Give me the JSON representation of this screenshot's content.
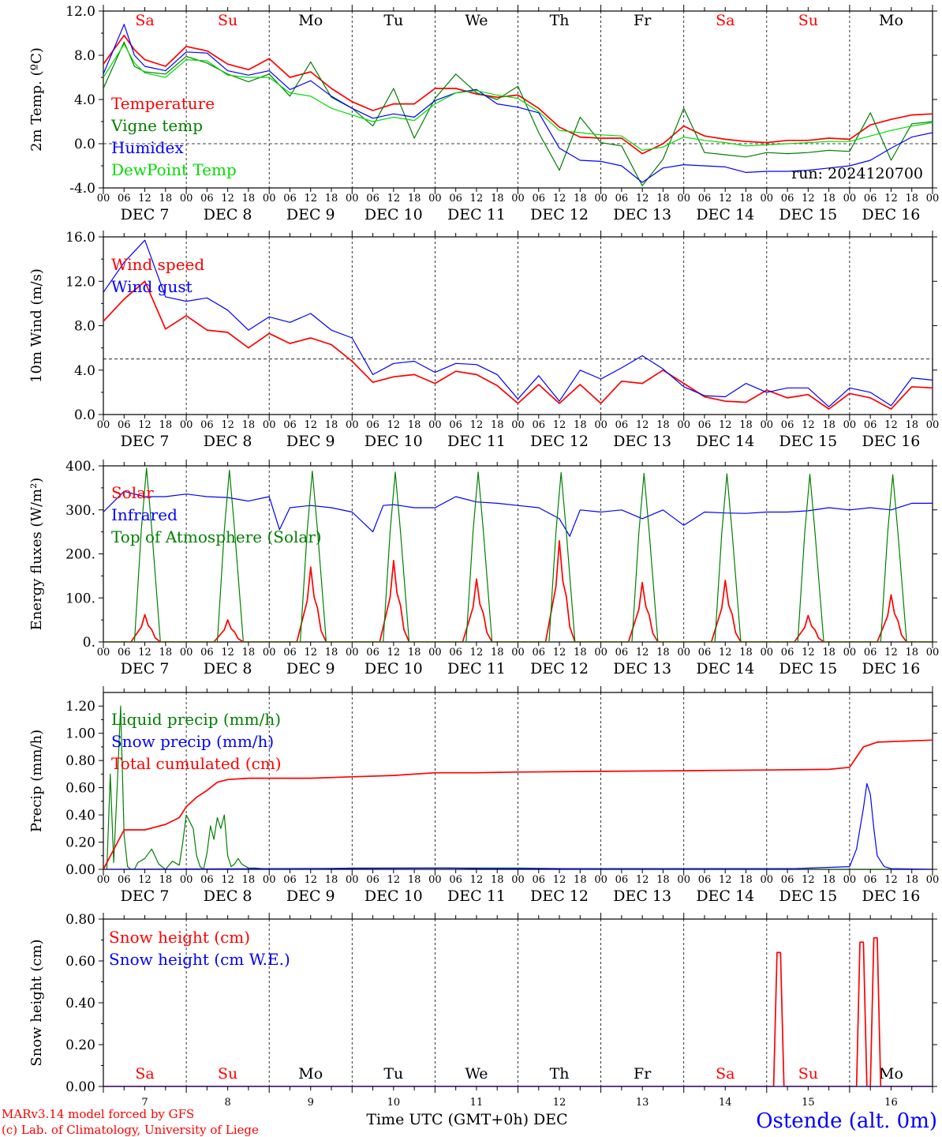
{
  "days": {
    "labels": [
      "Sa",
      "Su",
      "Mo",
      "Tu",
      "We",
      "Th",
      "Fr",
      "Sa",
      "Su",
      "Mo"
    ],
    "colors": [
      "#ff0000",
      "#ff0000",
      "#000000",
      "#000000",
      "#000000",
      "#000000",
      "#000000",
      "#ff0000",
      "#ff0000",
      "#000000"
    ],
    "dates": [
      "DEC  7",
      "DEC  8",
      "DEC  9",
      "DEC 10",
      "DEC 11",
      "DEC 12",
      "DEC 13",
      "DEC 14",
      "DEC 15",
      "DEC 16"
    ],
    "day_numbers": [
      "7",
      "8",
      "9",
      "10",
      "11",
      "12",
      "13",
      "14",
      "15",
      "16"
    ],
    "hour_ticks": [
      "00",
      "06",
      "12",
      "18"
    ],
    "final_hour": "00"
  },
  "footer": {
    "model": "MARv3.14 model forced by GFS",
    "credit": "(c) Lab. of Climatology, University of Liege",
    "xlabel": "Time UTC (GMT+0h) DEC",
    "station": "Ostende (alt. 0m)"
  },
  "colors": {
    "red": "#ff0000",
    "green": "#008000",
    "blue": "#0000ff",
    "lightgreen": "#00dd00"
  },
  "chart_data": [
    {
      "type": "line",
      "id": "temp",
      "ylabel": "2m Temp. (ºC)",
      "ylim": [
        -4,
        12
      ],
      "yticks": [
        -4,
        0,
        4,
        8,
        12
      ],
      "yticklabels": [
        "-4.0",
        "0.0",
        "4.0",
        "8.0",
        "12.0"
      ],
      "ref_line": 0,
      "annotation": "run: 2024120700",
      "x_unit": "hours since 2024-12-07 00 UTC",
      "series": [
        {
          "name": "Temperature",
          "color": "#ff0000",
          "x": [
            0,
            6,
            9,
            12,
            18,
            24,
            30,
            36,
            42,
            48,
            54,
            60,
            66,
            72,
            78,
            84,
            90,
            96,
            102,
            108,
            114,
            120,
            126,
            132,
            138,
            144,
            150,
            156,
            162,
            168,
            174,
            180,
            186,
            192,
            198,
            204,
            210,
            216,
            222,
            228,
            234,
            240
          ],
          "y": [
            7.2,
            9.8,
            8.5,
            7.6,
            7.0,
            8.8,
            8.4,
            7.2,
            6.7,
            7.7,
            6.0,
            6.5,
            5.0,
            3.8,
            3.0,
            3.6,
            3.6,
            5.0,
            5.0,
            4.5,
            4.2,
            4.4,
            3.2,
            1.5,
            0.6,
            0.5,
            0.5,
            -0.9,
            0.0,
            1.6,
            0.7,
            0.4,
            0.2,
            0.1,
            0.3,
            0.3,
            0.5,
            0.4,
            1.7,
            2.2,
            2.6,
            2.7
          ]
        },
        {
          "name": "Vigne temp",
          "color": "#008000",
          "x": [
            0,
            6,
            9,
            12,
            18,
            24,
            30,
            36,
            42,
            48,
            54,
            60,
            66,
            72,
            78,
            84,
            90,
            96,
            102,
            108,
            114,
            120,
            126,
            132,
            138,
            144,
            150,
            156,
            162,
            168,
            174,
            180,
            186,
            192,
            198,
            204,
            210,
            216,
            222,
            228,
            234,
            240
          ],
          "y": [
            5.0,
            9.2,
            7.0,
            6.5,
            6.3,
            7.9,
            7.3,
            6.3,
            5.6,
            6.3,
            4.3,
            7.4,
            4.2,
            3.2,
            1.6,
            5.0,
            0.5,
            4.1,
            6.3,
            4.6,
            4.0,
            5.2,
            1.0,
            -2.4,
            2.4,
            0.1,
            -0.2,
            -3.8,
            -1.4,
            3.2,
            -0.8,
            -1.0,
            -1.2,
            -0.8,
            -0.9,
            -0.8,
            -0.6,
            -0.7,
            2.8,
            -1.5,
            1.8,
            2.0
          ]
        },
        {
          "name": "Humidex",
          "color": "#0000ff",
          "x": [
            0,
            6,
            9,
            12,
            18,
            24,
            30,
            36,
            42,
            48,
            54,
            60,
            66,
            72,
            78,
            84,
            90,
            96,
            102,
            108,
            114,
            120,
            126,
            132,
            138,
            144,
            150,
            156,
            162,
            168,
            174,
            180,
            186,
            192,
            198,
            204,
            210,
            216,
            222,
            228,
            234,
            240
          ],
          "y": [
            6.3,
            10.8,
            8.0,
            7.0,
            6.6,
            8.3,
            8.2,
            6.6,
            6.2,
            6.6,
            4.9,
            5.7,
            4.3,
            3.2,
            2.3,
            2.7,
            2.4,
            3.9,
            4.6,
            4.9,
            3.6,
            3.3,
            2.8,
            -0.4,
            -1.5,
            -1.6,
            -2.0,
            -3.5,
            -2.2,
            -1.9,
            -2.0,
            -2.1,
            -2.6,
            -2.5,
            -2.5,
            -2.4,
            -2.2,
            -2.0,
            -1.5,
            -0.4,
            0.6,
            1.0
          ]
        },
        {
          "name": "DewPoint Temp",
          "color": "#00dd00",
          "x": [
            0,
            6,
            9,
            12,
            18,
            24,
            30,
            36,
            42,
            48,
            54,
            60,
            66,
            72,
            78,
            84,
            90,
            96,
            102,
            108,
            114,
            120,
            126,
            132,
            138,
            144,
            150,
            156,
            162,
            168,
            174,
            180,
            186,
            192,
            198,
            204,
            210,
            216,
            222,
            228,
            234,
            240
          ],
          "y": [
            6.0,
            9.0,
            7.3,
            6.4,
            6.0,
            7.6,
            7.5,
            6.2,
            6.0,
            6.0,
            4.6,
            4.3,
            3.2,
            2.6,
            2.0,
            2.4,
            2.1,
            3.6,
            4.6,
            4.8,
            4.4,
            4.1,
            2.9,
            1.2,
            1.0,
            0.8,
            0.7,
            -0.6,
            -0.3,
            0.6,
            0.3,
            0.1,
            -0.2,
            -0.1,
            0.0,
            0.1,
            0.2,
            0.2,
            0.7,
            1.2,
            1.6,
            1.9
          ]
        }
      ]
    },
    {
      "type": "line",
      "id": "wind",
      "ylabel": "10m Wind (m/s)",
      "ylim": [
        0,
        16
      ],
      "yticks": [
        0,
        4,
        8,
        12,
        16
      ],
      "yticklabels": [
        "0.0",
        "4.0",
        "8.0",
        "12.0",
        "16.0"
      ],
      "ref_line": 5,
      "x_unit": "hours since 2024-12-07 00 UTC",
      "series": [
        {
          "name": "Wind speed",
          "color": "#ff0000",
          "x": [
            0,
            6,
            12,
            18,
            24,
            30,
            36,
            42,
            48,
            54,
            60,
            66,
            72,
            78,
            84,
            90,
            96,
            102,
            108,
            114,
            120,
            126,
            132,
            138,
            144,
            150,
            156,
            162,
            168,
            174,
            180,
            186,
            192,
            198,
            204,
            210,
            216,
            222,
            228,
            234,
            240
          ],
          "y": [
            8.4,
            10.4,
            12.0,
            7.7,
            8.9,
            7.6,
            7.4,
            6.0,
            7.3,
            6.4,
            6.9,
            6.3,
            4.8,
            2.9,
            3.4,
            3.6,
            2.8,
            3.9,
            3.6,
            2.6,
            1.0,
            2.7,
            1.0,
            2.7,
            1.0,
            3.0,
            2.8,
            4.0,
            2.8,
            1.6,
            1.2,
            1.1,
            2.2,
            1.5,
            1.8,
            0.5,
            1.9,
            1.5,
            0.5,
            2.5,
            2.4
          ]
        },
        {
          "name": "Wind gust",
          "color": "#0000ff",
          "x": [
            0,
            6,
            12,
            18,
            24,
            30,
            36,
            42,
            48,
            54,
            60,
            66,
            72,
            78,
            84,
            90,
            96,
            102,
            108,
            114,
            120,
            126,
            132,
            138,
            144,
            150,
            156,
            162,
            168,
            174,
            180,
            186,
            192,
            198,
            204,
            210,
            216,
            222,
            228,
            234,
            240
          ],
          "y": [
            11.0,
            13.7,
            15.7,
            10.6,
            10.2,
            10.5,
            9.4,
            7.6,
            8.8,
            8.3,
            9.1,
            7.6,
            6.9,
            3.6,
            4.6,
            4.8,
            3.8,
            4.6,
            4.5,
            3.6,
            1.4,
            3.5,
            1.2,
            4.0,
            3.2,
            4.2,
            5.3,
            4.1,
            2.5,
            1.7,
            1.6,
            2.8,
            2.0,
            2.4,
            2.4,
            0.7,
            2.4,
            2.0,
            0.8,
            3.3,
            3.1
          ]
        }
      ]
    },
    {
      "type": "line",
      "id": "flux",
      "ylabel": "Energy fluxes (W/m²)",
      "ylim": [
        0,
        400
      ],
      "yticks": [
        0,
        100,
        200,
        300,
        400
      ],
      "yticklabels": [
        "0.",
        "100.",
        "200.",
        "300.",
        "400."
      ],
      "x_unit": "hours since 2024-12-07 00 UTC",
      "series": [
        {
          "name": "Solar",
          "color": "#ff0000",
          "peaks": [
            62,
            50,
            170,
            185,
            143,
            230,
            135,
            140,
            60,
            107
          ]
        },
        {
          "name": "Infrared",
          "color": "#0000ff",
          "x": [
            0,
            6,
            12,
            18,
            24,
            30,
            36,
            42,
            48,
            51,
            54,
            60,
            66,
            72,
            78,
            81,
            84,
            90,
            96,
            102,
            108,
            114,
            120,
            126,
            132,
            135,
            138,
            144,
            150,
            156,
            162,
            168,
            174,
            180,
            186,
            192,
            198,
            204,
            210,
            216,
            222,
            228,
            234,
            240
          ],
          "y": [
            295,
            342,
            330,
            330,
            336,
            330,
            328,
            320,
            330,
            255,
            305,
            310,
            305,
            295,
            250,
            310,
            312,
            305,
            305,
            330,
            318,
            315,
            310,
            305,
            280,
            240,
            300,
            295,
            300,
            280,
            300,
            265,
            295,
            293,
            292,
            295,
            295,
            298,
            305,
            300,
            305,
            300,
            315,
            315
          ]
        },
        {
          "name": "Top of Atmosphere (Solar)",
          "color": "#008000",
          "peak": 385,
          "peaks": [
            395,
            390,
            388,
            386,
            386,
            385,
            383,
            382,
            381,
            380
          ]
        }
      ]
    },
    {
      "type": "line",
      "id": "precip",
      "ylabel": "Precip (mm/h)",
      "ylim": [
        0,
        1.3
      ],
      "yticks": [
        0,
        0.2,
        0.4,
        0.6,
        0.8,
        1.0,
        1.2
      ],
      "yticklabels": [
        "0.00",
        "0.20",
        "0.40",
        "0.60",
        "0.80",
        "1.00",
        "1.20"
      ],
      "x_unit": "hours since 2024-12-07 00 UTC",
      "series": [
        {
          "name": "Liquid precip (mm/h)",
          "color": "#008000",
          "x": [
            0,
            1,
            2,
            3,
            4,
            5,
            6,
            7,
            8,
            9,
            10,
            12,
            14,
            16,
            17,
            18,
            20,
            22,
            23,
            24,
            25,
            26,
            27,
            28,
            29,
            30,
            31,
            32,
            33,
            34,
            35,
            36,
            37,
            38,
            39,
            40,
            42,
            44,
            48,
            60,
            72,
            96,
            120,
            150,
            180,
            210,
            240
          ],
          "y": [
            0,
            0,
            0.7,
            0.05,
            0.6,
            1.2,
            0.25,
            0.02,
            0,
            0,
            0.05,
            0.08,
            0.15,
            0.04,
            0.02,
            0,
            0.06,
            0.03,
            0.2,
            0.4,
            0.35,
            0.3,
            0.1,
            0.02,
            0.0,
            0.12,
            0.32,
            0.22,
            0.38,
            0.3,
            0.4,
            0.1,
            0.02,
            0.04,
            0.08,
            0.04,
            0.01,
            0.01,
            0,
            0,
            0.01,
            0.01,
            0.01,
            0,
            0,
            0,
            0
          ]
        },
        {
          "name": "Snow precip (mm/h)",
          "color": "#0000ff",
          "x": [
            0,
            100,
            110,
            200,
            216,
            218,
            220,
            221,
            222,
            223,
            224,
            226,
            228,
            240
          ],
          "y": [
            0,
            0.01,
            0.005,
            0.005,
            0.02,
            0.15,
            0.45,
            0.63,
            0.55,
            0.3,
            0.1,
            0.02,
            0.005,
            0
          ]
        },
        {
          "name": "Total cumulated (cm)",
          "color": "#ff0000",
          "x": [
            0,
            6,
            12,
            18,
            22,
            24,
            27,
            30,
            33,
            36,
            42,
            48,
            60,
            72,
            84,
            96,
            108,
            120,
            144,
            168,
            192,
            210,
            216,
            220,
            224,
            240
          ],
          "y": [
            0,
            0.29,
            0.29,
            0.33,
            0.38,
            0.46,
            0.53,
            0.58,
            0.64,
            0.66,
            0.67,
            0.67,
            0.67,
            0.68,
            0.69,
            0.71,
            0.71,
            0.715,
            0.72,
            0.725,
            0.73,
            0.735,
            0.75,
            0.9,
            0.935,
            0.95
          ]
        }
      ]
    },
    {
      "type": "line",
      "id": "snow",
      "ylabel": "Snow height (cm)",
      "ylim": [
        0,
        0.8
      ],
      "yticks": [
        0,
        0.2,
        0.4,
        0.6,
        0.8
      ],
      "yticklabels": [
        "0.00",
        "0.20",
        "0.40",
        "0.60",
        "0.80"
      ],
      "x_unit": "hours since 2024-12-07 00 UTC",
      "series": [
        {
          "name": "Snow height (cm)",
          "color": "#ff0000",
          "x": [
            0,
            194,
            195,
            196,
            197,
            218,
            219,
            220,
            221,
            222,
            223,
            224,
            225,
            240
          ],
          "y": [
            0,
            0,
            0.64,
            0.64,
            0,
            0,
            0.69,
            0.69,
            0,
            0,
            0.71,
            0.71,
            0,
            0
          ]
        },
        {
          "name": "Snow height (cm W.E.)",
          "color": "#0000ff",
          "x": [
            0,
            240
          ],
          "y": [
            0,
            0
          ]
        }
      ]
    }
  ]
}
